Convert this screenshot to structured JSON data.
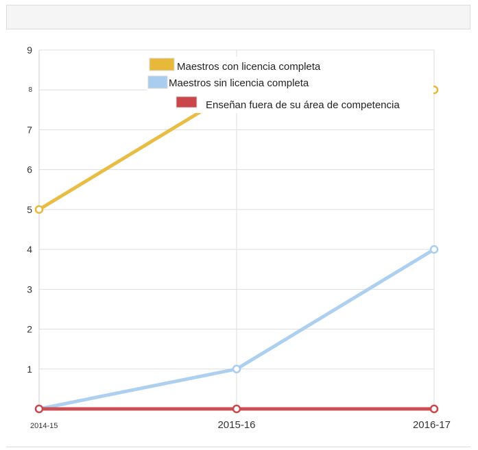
{
  "chart_data": {
    "type": "line",
    "categories": [
      "2014-15",
      "2015-16",
      "2016-17"
    ],
    "series": [
      {
        "name": "Maestros con licencia completa",
        "values": [
          5,
          8,
          8
        ],
        "color": "#e8b83a"
      },
      {
        "name": "Maestros sin licencia completa",
        "values": [
          0,
          1,
          4
        ],
        "color": "#a9cdef"
      },
      {
        "name": "Enseñan fuera de su área de competencia",
        "values": [
          0,
          0,
          0
        ],
        "color": "#c9464a"
      }
    ],
    "ylim": [
      0,
      9
    ],
    "yticks": [
      {
        "value": 1,
        "label": "1"
      },
      {
        "value": 2,
        "label": "2"
      },
      {
        "value": 3,
        "label": "3"
      },
      {
        "value": 4,
        "label": "4"
      },
      {
        "value": 5,
        "label": "5"
      },
      {
        "value": 6,
        "label": "6"
      },
      {
        "value": 7,
        "label": "7"
      },
      {
        "value": 8,
        "label": "8"
      },
      {
        "value": 9,
        "label": "9"
      }
    ],
    "grid": true,
    "legend_position": "top-center"
  }
}
